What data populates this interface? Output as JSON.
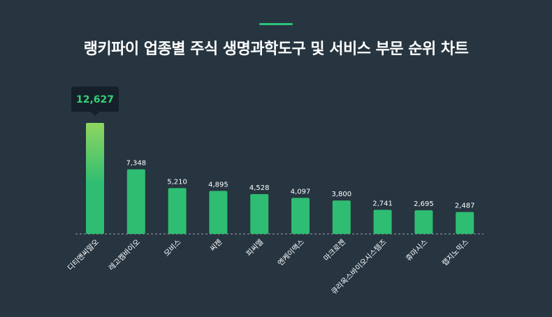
{
  "title": "랭키파이 업종별 주식 생명과학도구 및 서비스 부문 순위 차트",
  "colors": {
    "background": "#263540",
    "bar": "#2ebd72",
    "bar_top_highlight": "#8fd65f",
    "tooltip_bg": "#15202a",
    "tooltip_text": "#37d178",
    "label_text": "#ffffff",
    "accent": "#2ec27e"
  },
  "chart_data": {
    "type": "bar",
    "title": "랭키파이 업종별 주식 생명과학도구 및 서비스 부문 순위 차트",
    "categories": [
      "디티앤씨알오",
      "레고켐바이오",
      "모비스",
      "씨젠",
      "피씨엘",
      "엔케이맥스",
      "마크로젠",
      "큐리옥스바이오시스템즈",
      "휴마시스",
      "랩지노믹스"
    ],
    "values": [
      12627,
      7348,
      5210,
      4895,
      4528,
      4097,
      3800,
      2741,
      2695,
      2487
    ],
    "value_labels": [
      "12,627",
      "7,348",
      "5,210",
      "4,895",
      "4,528",
      "4,097",
      "3,800",
      "2,741",
      "2,695",
      "2,487"
    ],
    "highlighted_index": 0,
    "ylim": [
      0,
      12627
    ],
    "grid": false,
    "baseline": "dashed"
  }
}
